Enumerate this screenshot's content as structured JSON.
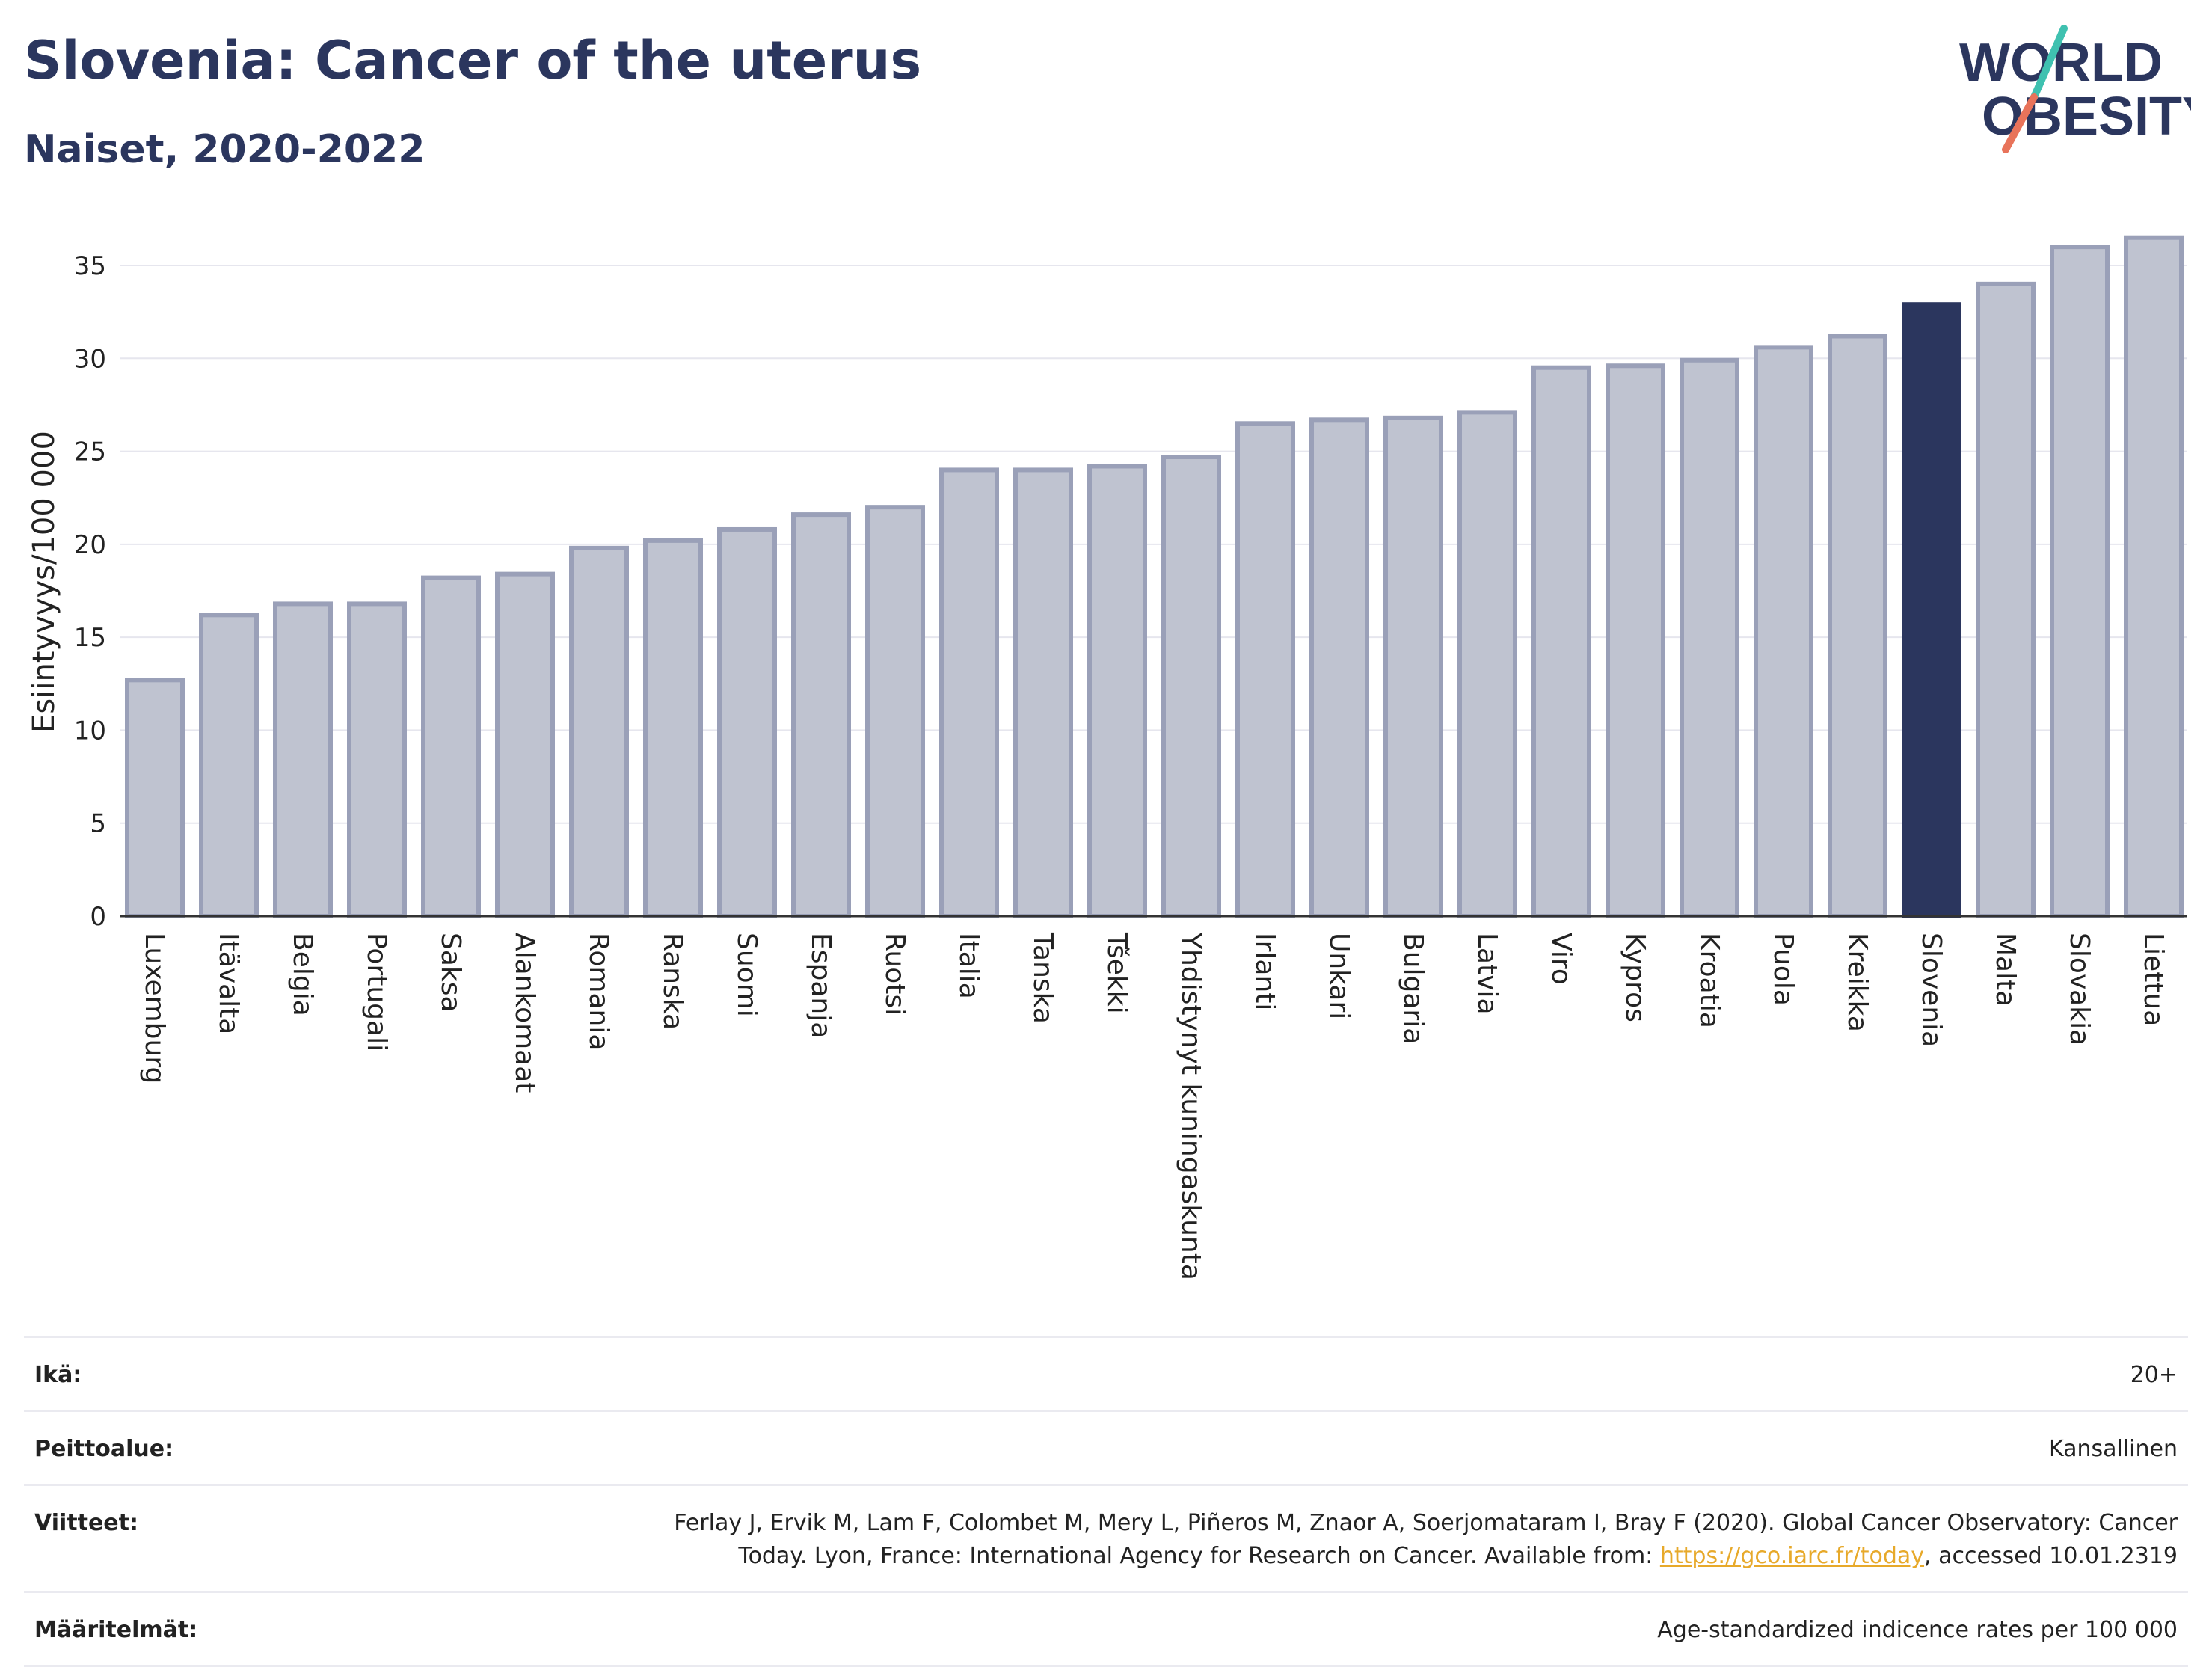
{
  "title": "Slovenia: Cancer of the uterus",
  "subtitle": "Naiset, 2020-2022",
  "logo": {
    "line1": "WORLD",
    "line2": "OBESITY"
  },
  "colors": {
    "bar_fill": "#bfc3d0",
    "bar_stroke": "#9aa0b8",
    "highlight": "#2b365e",
    "grid": "#e6e6ee",
    "brand_navy": "#2b365e",
    "logo_teal": "#3fc1b0",
    "logo_coral": "#e8735a",
    "link": "#e7a92a"
  },
  "chart_data": {
    "type": "bar",
    "title": "Slovenia: Cancer of the uterus",
    "subtitle": "Naiset, 2020-2022",
    "xlabel": "",
    "ylabel": "Esiintyvyys/100 000",
    "ylim": [
      0,
      37
    ],
    "yticks": [
      0,
      5,
      10,
      15,
      20,
      25,
      30,
      35
    ],
    "grid": true,
    "highlight": "Slovenia",
    "categories": [
      "Luxemburg",
      "Itävalta",
      "Belgia",
      "Portugali",
      "Saksa",
      "Alankomaat",
      "Romania",
      "Ranska",
      "Suomi",
      "Espanja",
      "Ruotsi",
      "Italia",
      "Tanska",
      "Tšekki",
      "Yhdistynyt kuningaskunta",
      "Irlanti",
      "Unkari",
      "Bulgaria",
      "Latvia",
      "Viro",
      "Kypros",
      "Kroatia",
      "Puola",
      "Kreikka",
      "Slovenia",
      "Malta",
      "Slovakia",
      "Liettua"
    ],
    "values": [
      12.7,
      16.2,
      16.8,
      16.8,
      18.2,
      18.4,
      19.8,
      20.2,
      20.8,
      21.6,
      22.0,
      24.0,
      24.0,
      24.2,
      24.7,
      26.5,
      26.7,
      26.8,
      27.1,
      29.5,
      29.6,
      29.9,
      30.6,
      31.2,
      32.9,
      34.0,
      36.0,
      36.5
    ]
  },
  "footer": {
    "rows": [
      {
        "label": "Ikä:",
        "value": "20+"
      },
      {
        "label": "Peittoalue:",
        "value": "Kansallinen"
      },
      {
        "label": "Viitteet:",
        "value_line1": "Ferlay J, Ervik M, Lam F, Colombet M, Mery L, Piñeros M, Znaor A, Soerjomataram I, Bray F (2020). Global Cancer Observatory: Cancer",
        "value_line2_pre": "Today. Lyon, France: International Agency for Research on Cancer. Available from: ",
        "link_text": "https://gco.iarc.fr/today",
        "value_line2_post": ", accessed 10.01.2319"
      },
      {
        "label": "Määritelmät:",
        "value": "Age-standardized indicence rates per 100 000"
      }
    ]
  }
}
